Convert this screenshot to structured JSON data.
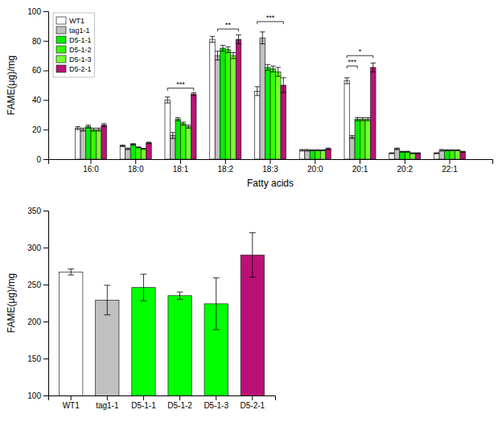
{
  "chart_data": [
    {
      "type": "bar",
      "xlabel": "Fatty acids",
      "ylabel": "FAME(μg)/mg",
      "categories": [
        "16:0",
        "18:0",
        "18:1",
        "18:2",
        "18:3",
        "20:0",
        "20:1",
        "20:2",
        "22:1"
      ],
      "series": [
        {
          "name": "WT1",
          "color": "white",
          "values": [
            21,
            9,
            40,
            81,
            46,
            6,
            53,
            4,
            4
          ],
          "errors": [
            1,
            0.5,
            2,
            2,
            3,
            0.5,
            2,
            0.3,
            0.3
          ]
        },
        {
          "name": "tag1-1",
          "color": "#c0c0c0",
          "values": [
            20,
            7,
            16,
            70,
            82,
            6,
            15,
            7,
            6
          ],
          "errors": [
            1,
            0.5,
            2,
            3,
            4,
            0.5,
            1,
            0.5,
            0.5
          ]
        },
        {
          "name": "D5-1-1",
          "color": "#00ee00",
          "values": [
            22,
            10,
            27,
            75,
            62,
            6,
            27,
            5,
            6
          ],
          "errors": [
            1,
            0.5,
            1,
            2,
            2,
            0.3,
            1,
            0.3,
            0.3
          ]
        },
        {
          "name": "D5-1-2",
          "color": "#33ff00",
          "values": [
            20,
            8,
            24,
            74,
            61,
            6,
            27,
            5,
            6
          ],
          "errors": [
            1,
            0.3,
            1,
            2,
            2,
            0.3,
            1,
            0.3,
            0.3
          ]
        },
        {
          "name": "D5-1-3",
          "color": "#77ff33",
          "values": [
            20,
            7,
            22,
            70,
            59,
            6,
            27,
            4,
            6
          ],
          "errors": [
            1,
            0.3,
            1,
            2,
            3,
            0.3,
            1,
            0.3,
            0.3
          ]
        },
        {
          "name": "D5-2-1",
          "color": "#bb1177",
          "values": [
            23,
            11,
            44,
            81,
            50,
            7,
            62,
            4,
            5
          ],
          "errors": [
            1,
            0.5,
            1,
            3,
            5,
            0.5,
            3,
            0.3,
            0.3
          ]
        }
      ],
      "ylim": [
        0,
        100
      ],
      "yticks": [
        0,
        20,
        40,
        60,
        80,
        100
      ],
      "grid": false,
      "legend": "upper left",
      "annotations": [
        {
          "text": "***",
          "category": "18:1",
          "from": "WT1",
          "to": "D5-2-1",
          "y": 48
        },
        {
          "text": "**",
          "category": "18:2",
          "from": "tag1-1",
          "to": "D5-2-1",
          "y": 88
        },
        {
          "text": "***",
          "category": "18:3",
          "from": "WT1",
          "to": "D5-2-1",
          "y": 93
        },
        {
          "text": "*",
          "category": "20:1",
          "from": "WT1",
          "to": "D5-2-1",
          "y": 70
        },
        {
          "text": "***",
          "category": "20:1",
          "from": "WT1",
          "to": "D5-1-1",
          "y": 63
        }
      ]
    },
    {
      "type": "bar",
      "ylabel": "FAME(μg)/mg",
      "categories": [
        "WT1",
        "tag1-1",
        "D5-1-1",
        "D5-1-2",
        "D5-1-3",
        "D5-2-1"
      ],
      "values": [
        267,
        229,
        246,
        235,
        224,
        290
      ],
      "errors": [
        4,
        20,
        18,
        5,
        35,
        30
      ],
      "colors": [
        "white",
        "#c0c0c0",
        "#00ff00",
        "#00ff00",
        "#00ff00",
        "#bb1177"
      ],
      "ylim": [
        100,
        350
      ],
      "yticks": [
        100,
        150,
        200,
        250,
        300,
        350
      ],
      "grid": false
    }
  ]
}
